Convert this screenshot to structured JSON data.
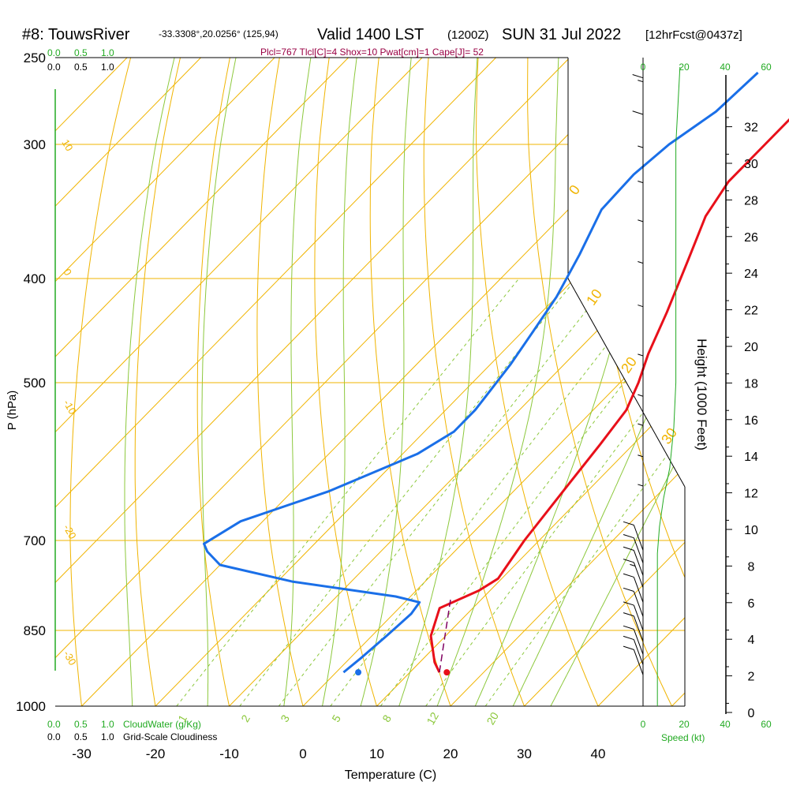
{
  "header": {
    "title_main": "#8: TouwsRiver",
    "coords": "-33.3308°,20.0256° (125,94)",
    "valid": "Valid 1400 LST",
    "utc": "(1200Z)",
    "date": "SUN 31 Jul 2022",
    "fcst": "[12hrFcst@0437z]",
    "indices": "Plcl=767 Tlcl[C]=4 Shox=10 Pwat[cm]=1 Cape[J]= 52"
  },
  "colors": {
    "temperature": "#e8101a",
    "dewpoint": "#1a6fe8",
    "isotherm": "#f0b400",
    "dry_adiabat": "#f0b400",
    "moist_adiabat": "#8cc83c",
    "mixing_ratio": "#8cc83c",
    "parcel": "#800060",
    "cloudwater": "#22aa22",
    "indices": "#990044"
  },
  "labels": {
    "cloudwater": "CloudWater (g/Kg)",
    "cloudiness": "Grid-Scale Cloudiness",
    "speed": "Speed (kt)",
    "cloud_scale": [
      "0.0",
      "0.5",
      "1.0"
    ]
  },
  "chart_data": {
    "type": "line",
    "title": "#8: TouwsRiver",
    "xlabel": "Temperature (C)",
    "ylabel": "P (hPa)",
    "y2label": "Height (1000 Feet)",
    "xlim": [
      -35,
      52
    ],
    "ylim": [
      1000,
      250
    ],
    "x_ticks": [
      -30,
      -20,
      -10,
      0,
      10,
      20,
      30,
      40
    ],
    "p_ticks": [
      250,
      300,
      400,
      500,
      700,
      850,
      1000
    ],
    "height_ticks": [
      0,
      2,
      4,
      6,
      8,
      10,
      12,
      14,
      16,
      18,
      20,
      22,
      24,
      26,
      28,
      30,
      32
    ],
    "wind_speed_ticks": [
      0,
      20,
      40,
      60
    ],
    "mixing_ratio_labels": [
      "1",
      "2",
      "3",
      "5",
      "8",
      "12",
      "20"
    ],
    "dry_adiabat_labels_top": [
      "0",
      "10",
      "20",
      "30"
    ],
    "dry_adiabat_labels_left": [
      "10",
      "0",
      "-10",
      "-20",
      "-30"
    ],
    "series": [
      {
        "name": "Temperature",
        "points": [
          [
            14,
            930
          ],
          [
            12,
            910
          ],
          [
            8,
            860
          ],
          [
            5.5,
            810
          ],
          [
            8.5,
            780
          ],
          [
            9.5,
            760
          ],
          [
            8,
            700
          ],
          [
            6.5,
            620
          ],
          [
            5.5,
            570
          ],
          [
            4.5,
            530
          ],
          [
            2.5,
            500
          ],
          [
            0,
            470
          ],
          [
            -3,
            430
          ],
          [
            -7,
            385
          ],
          [
            -10.5,
            350
          ],
          [
            -12,
            325
          ],
          [
            -12,
            300
          ],
          [
            -12,
            280
          ],
          [
            -11.3,
            261
          ]
        ]
      },
      {
        "name": "Dewpoint",
        "points": [
          [
            1,
            930
          ],
          [
            1.5,
            900
          ],
          [
            2,
            860
          ],
          [
            2.4,
            820
          ],
          [
            2,
            800
          ],
          [
            -2,
            790
          ],
          [
            -18,
            765
          ],
          [
            -30,
            738
          ],
          [
            -33.5,
            717
          ],
          [
            -35,
            705
          ],
          [
            -33,
            672
          ],
          [
            -25,
            630
          ],
          [
            -18,
            582
          ],
          [
            -16,
            555
          ],
          [
            -16,
            530
          ],
          [
            -16.5,
            510
          ],
          [
            -17.3,
            480
          ],
          [
            -18.5,
            450
          ],
          [
            -20,
            416
          ],
          [
            -22.5,
            380
          ],
          [
            -25.5,
            345
          ],
          [
            -25.8,
            320
          ],
          [
            -25,
            300
          ],
          [
            -23,
            280
          ],
          [
            -22.5,
            258
          ]
        ]
      },
      {
        "name": "Parcel",
        "points": [
          [
            14,
            930
          ],
          [
            5.5,
            790
          ]
        ]
      }
    ],
    "surface_temperature": 15,
    "surface_dewpoint": 3,
    "winds": [
      {
        "p": 935,
        "spd": 10
      },
      {
        "p": 915,
        "spd": 11
      },
      {
        "p": 895,
        "spd": 12
      },
      {
        "p": 870,
        "spd": 12
      },
      {
        "p": 850,
        "spd": 11
      },
      {
        "p": 825,
        "spd": 11
      },
      {
        "p": 800,
        "spd": 12
      },
      {
        "p": 775,
        "spd": 14
      },
      {
        "p": 755,
        "spd": 12
      },
      {
        "p": 735,
        "spd": 10
      },
      {
        "p": 715,
        "spd": 9
      },
      {
        "p": 660,
        "spd": 6
      },
      {
        "p": 620,
        "spd": 6
      },
      {
        "p": 580,
        "spd": 5
      },
      {
        "p": 545,
        "spd": 4
      },
      {
        "p": 500,
        "spd": 3
      },
      {
        "p": 450,
        "spd": 3
      },
      {
        "p": 410,
        "spd": 3
      },
      {
        "p": 375,
        "spd": 4
      },
      {
        "p": 345,
        "spd": 4
      },
      {
        "p": 320,
        "spd": 5
      },
      {
        "p": 298,
        "spd": 10
      },
      {
        "p": 276,
        "spd": 14
      }
    ],
    "wind_speed_profile": [
      [
        7,
        1000
      ],
      [
        7,
        720
      ],
      [
        8,
        680
      ],
      [
        10,
        640
      ],
      [
        13,
        600
      ],
      [
        15,
        550
      ],
      [
        16,
        500
      ],
      [
        16,
        420
      ],
      [
        16,
        350
      ],
      [
        16,
        300
      ],
      [
        18,
        255
      ]
    ]
  }
}
